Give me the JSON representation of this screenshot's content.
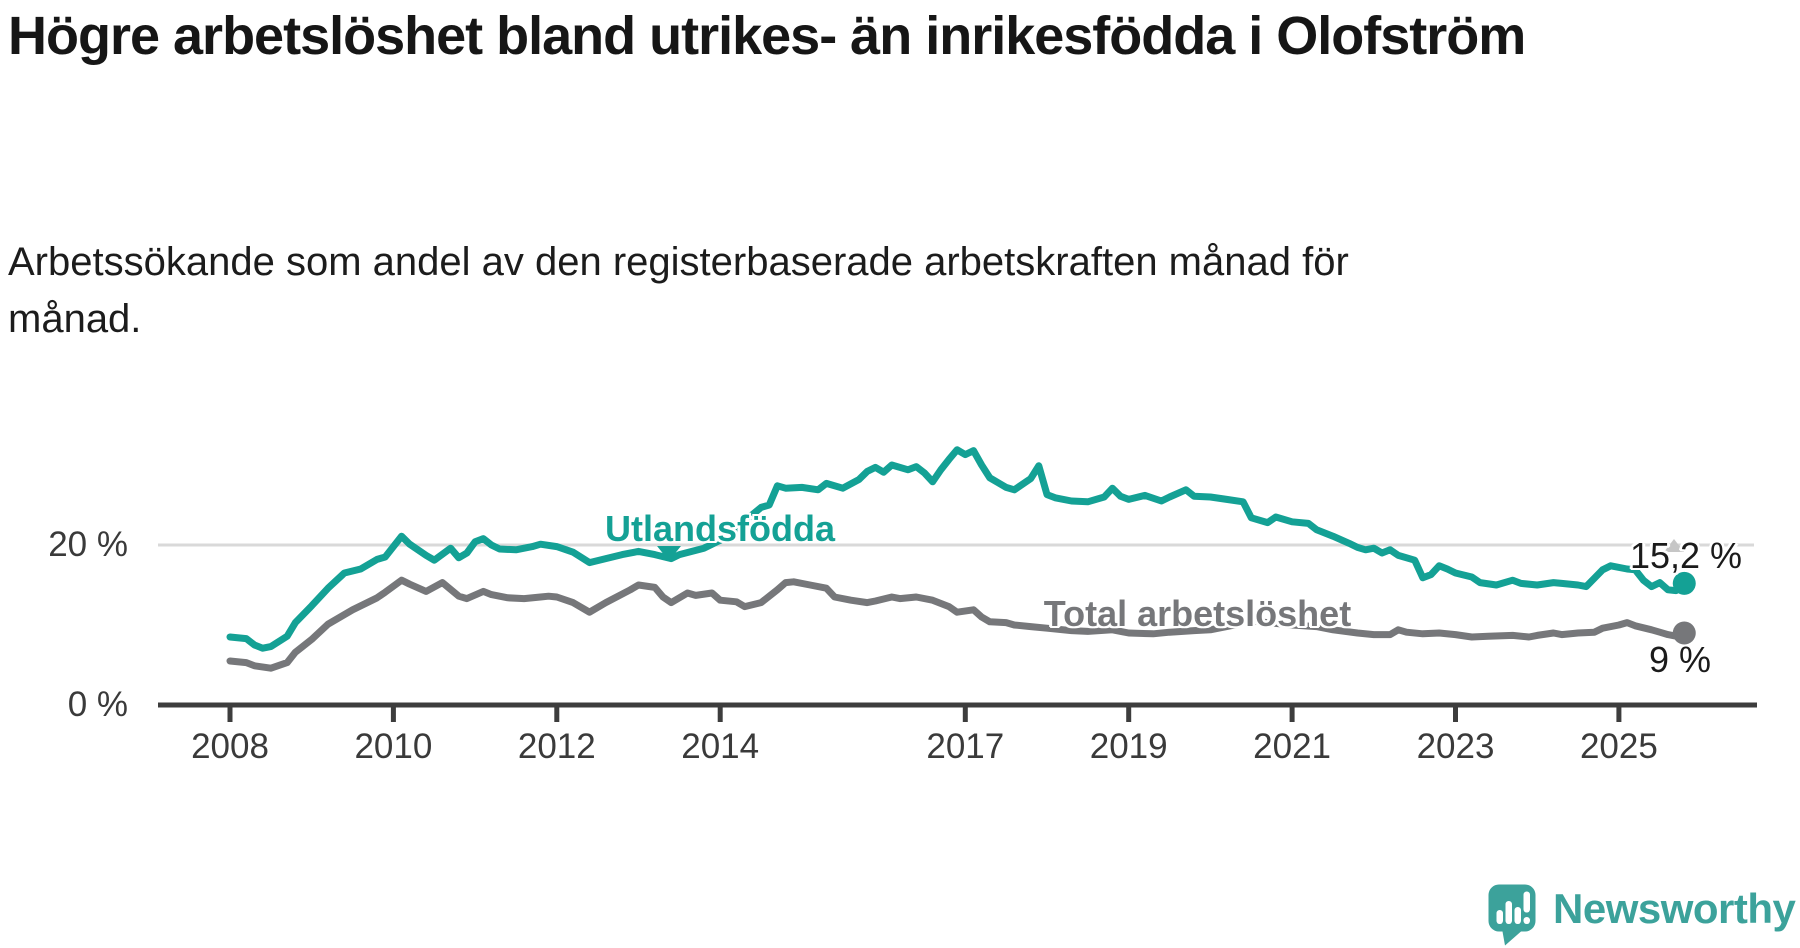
{
  "header": {
    "title": "Högre arbetslöshet bland utrikes- än inrikesfödda i Olofström",
    "subtitle": "Arbetssökande som andel av den registerbaserade arbetskraften månad för månad."
  },
  "colors": {
    "accent_teal": "#14a195",
    "series_gray": "#76777a",
    "gridline": "#d9d9d9",
    "axis": "#3d3d3d",
    "tick_label": "#3a3a3a",
    "annotation_text": "#1b1b1b",
    "marker_faint": "#c6c6c6",
    "logo_teal": "#3ca29b"
  },
  "chart_data": {
    "type": "line",
    "title": "Högre arbetslöshet bland utrikes- än inrikesfödda i Olofström",
    "subtitle": "Arbetssökande som andel av den registerbaserade arbetskraften månad för månad.",
    "x_axis": {
      "unit": "year",
      "range": [
        2007.9,
        2026.6
      ],
      "ticks": [
        {
          "label": "2008",
          "year": 2008
        },
        {
          "label": "2010",
          "year": 2010
        },
        {
          "label": "2012",
          "year": 2012
        },
        {
          "label": "2014",
          "year": 2014
        },
        {
          "label": "2017",
          "year": 2017
        },
        {
          "label": "2019",
          "year": 2019
        },
        {
          "label": "2021",
          "year": 2021
        },
        {
          "label": "2023",
          "year": 2023
        },
        {
          "label": "2025",
          "year": 2025
        }
      ]
    },
    "y_axis": {
      "unit": "%",
      "range": [
        0,
        33.5
      ],
      "gridlines": [
        20
      ],
      "ticks": [
        {
          "label": "20 %",
          "value": 20
        },
        {
          "label": "0 %",
          "value": 0
        }
      ]
    },
    "legend_position": "inline-labels",
    "grid": "horizontal-only",
    "series": [
      {
        "name": "Utlandsfödda",
        "color": "#14a195",
        "end_label": "15,2 %",
        "end_value": 15.2,
        "points": [
          [
            2008.0,
            8.5
          ],
          [
            2008.2,
            8.3
          ],
          [
            2008.3,
            7.5
          ],
          [
            2008.4,
            7.1
          ],
          [
            2008.5,
            7.3
          ],
          [
            2008.7,
            8.6
          ],
          [
            2008.8,
            10.3
          ],
          [
            2009.0,
            12.4
          ],
          [
            2009.2,
            14.6
          ],
          [
            2009.4,
            16.5
          ],
          [
            2009.6,
            17.0
          ],
          [
            2009.8,
            18.2
          ],
          [
            2009.9,
            18.5
          ],
          [
            2010.1,
            21.1
          ],
          [
            2010.2,
            20.1
          ],
          [
            2010.4,
            18.7
          ],
          [
            2010.5,
            18.1
          ],
          [
            2010.7,
            19.6
          ],
          [
            2010.8,
            18.4
          ],
          [
            2010.9,
            19.0
          ],
          [
            2011.0,
            20.4
          ],
          [
            2011.1,
            20.8
          ],
          [
            2011.2,
            20.0
          ],
          [
            2011.3,
            19.5
          ],
          [
            2011.5,
            19.4
          ],
          [
            2011.7,
            19.8
          ],
          [
            2011.8,
            20.1
          ],
          [
            2012.0,
            19.8
          ],
          [
            2012.2,
            19.1
          ],
          [
            2012.4,
            17.8
          ],
          [
            2012.6,
            18.3
          ],
          [
            2012.8,
            18.8
          ],
          [
            2013.0,
            19.2
          ],
          [
            2013.2,
            18.8
          ],
          [
            2013.4,
            18.3
          ],
          [
            2013.5,
            18.8
          ],
          [
            2013.8,
            19.6
          ],
          [
            2014.0,
            20.6
          ],
          [
            2014.2,
            21.6
          ],
          [
            2014.3,
            23.0
          ],
          [
            2014.5,
            24.7
          ],
          [
            2014.6,
            25.0
          ],
          [
            2014.7,
            27.4
          ],
          [
            2014.8,
            27.1
          ],
          [
            2015.0,
            27.2
          ],
          [
            2015.2,
            26.9
          ],
          [
            2015.3,
            27.7
          ],
          [
            2015.5,
            27.1
          ],
          [
            2015.7,
            28.2
          ],
          [
            2015.8,
            29.2
          ],
          [
            2015.9,
            29.7
          ],
          [
            2016.0,
            29.1
          ],
          [
            2016.1,
            30.0
          ],
          [
            2016.3,
            29.4
          ],
          [
            2016.4,
            29.8
          ],
          [
            2016.5,
            29.0
          ],
          [
            2016.6,
            27.9
          ],
          [
            2016.7,
            29.4
          ],
          [
            2016.8,
            30.7
          ],
          [
            2016.9,
            31.9
          ],
          [
            2017.0,
            31.3
          ],
          [
            2017.1,
            31.8
          ],
          [
            2017.2,
            30.0
          ],
          [
            2017.3,
            28.4
          ],
          [
            2017.4,
            27.8
          ],
          [
            2017.5,
            27.2
          ],
          [
            2017.6,
            26.9
          ],
          [
            2017.8,
            28.3
          ],
          [
            2017.9,
            29.9
          ],
          [
            2018.0,
            26.3
          ],
          [
            2018.1,
            25.9
          ],
          [
            2018.3,
            25.5
          ],
          [
            2018.5,
            25.4
          ],
          [
            2018.7,
            26.0
          ],
          [
            2018.8,
            27.1
          ],
          [
            2018.9,
            26.1
          ],
          [
            2019.0,
            25.7
          ],
          [
            2019.2,
            26.2
          ],
          [
            2019.4,
            25.5
          ],
          [
            2019.5,
            26.0
          ],
          [
            2019.7,
            26.9
          ],
          [
            2019.8,
            26.1
          ],
          [
            2020.0,
            26.0
          ],
          [
            2020.2,
            25.7
          ],
          [
            2020.4,
            25.4
          ],
          [
            2020.5,
            23.4
          ],
          [
            2020.7,
            22.8
          ],
          [
            2020.8,
            23.5
          ],
          [
            2021.0,
            22.9
          ],
          [
            2021.2,
            22.7
          ],
          [
            2021.3,
            21.9
          ],
          [
            2021.5,
            21.1
          ],
          [
            2021.7,
            20.2
          ],
          [
            2021.8,
            19.7
          ],
          [
            2021.9,
            19.4
          ],
          [
            2022.0,
            19.6
          ],
          [
            2022.1,
            19.0
          ],
          [
            2022.2,
            19.4
          ],
          [
            2022.3,
            18.7
          ],
          [
            2022.5,
            18.1
          ],
          [
            2022.6,
            15.9
          ],
          [
            2022.7,
            16.3
          ],
          [
            2022.8,
            17.4
          ],
          [
            2022.9,
            17.0
          ],
          [
            2023.0,
            16.5
          ],
          [
            2023.2,
            16.0
          ],
          [
            2023.3,
            15.3
          ],
          [
            2023.5,
            15.0
          ],
          [
            2023.7,
            15.6
          ],
          [
            2023.8,
            15.2
          ],
          [
            2024.0,
            15.0
          ],
          [
            2024.2,
            15.3
          ],
          [
            2024.3,
            15.2
          ],
          [
            2024.5,
            15.0
          ],
          [
            2024.6,
            14.8
          ],
          [
            2024.8,
            16.9
          ],
          [
            2024.9,
            17.4
          ],
          [
            2025.1,
            17.0
          ],
          [
            2025.2,
            16.9
          ],
          [
            2025.3,
            15.6
          ],
          [
            2025.4,
            14.8
          ],
          [
            2025.5,
            15.3
          ],
          [
            2025.6,
            14.4
          ],
          [
            2025.7,
            14.3
          ],
          [
            2025.8,
            15.2
          ]
        ]
      },
      {
        "name": "Total arbetslöshet",
        "color": "#76777a",
        "end_label": "9 %",
        "end_value": 9.0,
        "points": [
          [
            2008.0,
            5.5
          ],
          [
            2008.2,
            5.3
          ],
          [
            2008.3,
            4.9
          ],
          [
            2008.5,
            4.6
          ],
          [
            2008.7,
            5.3
          ],
          [
            2008.8,
            6.6
          ],
          [
            2009.0,
            8.2
          ],
          [
            2009.2,
            10.1
          ],
          [
            2009.5,
            11.9
          ],
          [
            2009.8,
            13.4
          ],
          [
            2009.9,
            14.1
          ],
          [
            2010.1,
            15.6
          ],
          [
            2010.2,
            15.1
          ],
          [
            2010.4,
            14.2
          ],
          [
            2010.6,
            15.3
          ],
          [
            2010.8,
            13.6
          ],
          [
            2010.9,
            13.3
          ],
          [
            2011.1,
            14.2
          ],
          [
            2011.2,
            13.8
          ],
          [
            2011.4,
            13.4
          ],
          [
            2011.6,
            13.3
          ],
          [
            2011.8,
            13.5
          ],
          [
            2011.9,
            13.6
          ],
          [
            2012.0,
            13.5
          ],
          [
            2012.2,
            12.8
          ],
          [
            2012.4,
            11.6
          ],
          [
            2012.6,
            12.8
          ],
          [
            2012.9,
            14.4
          ],
          [
            2013.0,
            15.0
          ],
          [
            2013.2,
            14.7
          ],
          [
            2013.3,
            13.5
          ],
          [
            2013.4,
            12.8
          ],
          [
            2013.6,
            14.0
          ],
          [
            2013.7,
            13.7
          ],
          [
            2013.9,
            14.0
          ],
          [
            2014.0,
            13.1
          ],
          [
            2014.2,
            12.9
          ],
          [
            2014.3,
            12.3
          ],
          [
            2014.5,
            12.8
          ],
          [
            2014.7,
            14.4
          ],
          [
            2014.8,
            15.3
          ],
          [
            2014.9,
            15.4
          ],
          [
            2015.1,
            15.0
          ],
          [
            2015.3,
            14.6
          ],
          [
            2015.4,
            13.5
          ],
          [
            2015.6,
            13.1
          ],
          [
            2015.8,
            12.8
          ],
          [
            2015.9,
            13.0
          ],
          [
            2016.1,
            13.5
          ],
          [
            2016.2,
            13.3
          ],
          [
            2016.4,
            13.5
          ],
          [
            2016.6,
            13.1
          ],
          [
            2016.8,
            12.3
          ],
          [
            2016.9,
            11.6
          ],
          [
            2017.1,
            11.9
          ],
          [
            2017.2,
            11.0
          ],
          [
            2017.3,
            10.4
          ],
          [
            2017.5,
            10.3
          ],
          [
            2017.6,
            10.0
          ],
          [
            2017.8,
            9.8
          ],
          [
            2018.0,
            9.6
          ],
          [
            2018.3,
            9.3
          ],
          [
            2018.5,
            9.2
          ],
          [
            2018.8,
            9.4
          ],
          [
            2019.0,
            9.0
          ],
          [
            2019.3,
            8.9
          ],
          [
            2019.5,
            9.1
          ],
          [
            2019.8,
            9.3
          ],
          [
            2020.0,
            9.4
          ],
          [
            2020.3,
            10.0
          ],
          [
            2020.4,
            10.6
          ],
          [
            2020.6,
            10.4
          ],
          [
            2020.8,
            10.2
          ],
          [
            2021.0,
            10.0
          ],
          [
            2021.3,
            9.8
          ],
          [
            2021.5,
            9.4
          ],
          [
            2021.8,
            9.0
          ],
          [
            2022.0,
            8.8
          ],
          [
            2022.2,
            8.8
          ],
          [
            2022.3,
            9.4
          ],
          [
            2022.4,
            9.1
          ],
          [
            2022.6,
            8.9
          ],
          [
            2022.8,
            9.0
          ],
          [
            2023.0,
            8.8
          ],
          [
            2023.2,
            8.5
          ],
          [
            2023.4,
            8.6
          ],
          [
            2023.7,
            8.7
          ],
          [
            2023.9,
            8.5
          ],
          [
            2024.0,
            8.7
          ],
          [
            2024.2,
            9.0
          ],
          [
            2024.3,
            8.8
          ],
          [
            2024.5,
            9.0
          ],
          [
            2024.7,
            9.1
          ],
          [
            2024.8,
            9.6
          ],
          [
            2025.0,
            10.0
          ],
          [
            2025.1,
            10.3
          ],
          [
            2025.2,
            9.9
          ],
          [
            2025.4,
            9.4
          ],
          [
            2025.5,
            9.1
          ],
          [
            2025.6,
            8.8
          ],
          [
            2025.7,
            8.6
          ],
          [
            2025.8,
            9.0
          ]
        ]
      }
    ]
  },
  "footer": {
    "logo_text": "Newsworthy"
  }
}
